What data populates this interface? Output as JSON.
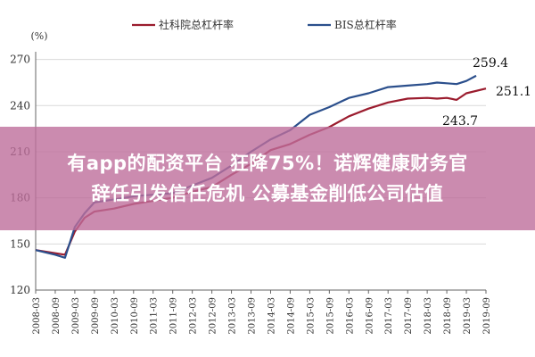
{
  "chart_data": {
    "type": "line",
    "unit_label": "(%)",
    "ylim": [
      120,
      275
    ],
    "yticks": [
      120,
      150,
      180,
      210,
      240,
      270
    ],
    "categories": [
      "2008-03",
      "2008-09",
      "2009-03",
      "2009-09",
      "2010-03",
      "2010-09",
      "2011-03",
      "2011-09",
      "2012-03",
      "2012-09",
      "2013-03",
      "2013-09",
      "2014-03",
      "2014-09",
      "2015-03",
      "2015-09",
      "2016-03",
      "2016-09",
      "2017-03",
      "2017-09",
      "2018-03",
      "2018-09",
      "2019-03",
      "2019-09"
    ],
    "legend_position": "top",
    "series": [
      {
        "name": "杠杆率",
        "label": "社科院总杠杆率",
        "color": "#9b1c2e",
        "points": [
          {
            "x": "2008-03",
            "y": 146
          },
          {
            "x": "2008-09",
            "y": 144
          },
          {
            "x": "2008-12",
            "y": 143
          },
          {
            "x": "2009-03",
            "y": 158
          },
          {
            "x": "2009-06",
            "y": 167
          },
          {
            "x": "2009-09",
            "y": 171
          },
          {
            "x": "2010-03",
            "y": 173
          },
          {
            "x": "2010-09",
            "y": 176
          },
          {
            "x": "2011-03",
            "y": 178
          },
          {
            "x": "2011-09",
            "y": 180
          },
          {
            "x": "2012-03",
            "y": 184
          },
          {
            "x": "2012-09",
            "y": 187
          },
          {
            "x": "2013-03",
            "y": 195
          },
          {
            "x": "2013-09",
            "y": 202
          },
          {
            "x": "2014-03",
            "y": 211
          },
          {
            "x": "2014-09",
            "y": 215
          },
          {
            "x": "2015-03",
            "y": 221
          },
          {
            "x": "2015-09",
            "y": 226
          },
          {
            "x": "2016-03",
            "y": 233
          },
          {
            "x": "2016-09",
            "y": 238
          },
          {
            "x": "2017-03",
            "y": 242
          },
          {
            "x": "2017-09",
            "y": 244.5
          },
          {
            "x": "2018-03",
            "y": 245
          },
          {
            "x": "2018-06",
            "y": 244.5
          },
          {
            "x": "2018-09",
            "y": 245
          },
          {
            "x": "2018-12",
            "y": 243.7
          },
          {
            "x": "2019-03",
            "y": 248
          },
          {
            "x": "2019-09",
            "y": 251.1
          }
        ]
      },
      {
        "name": "BIS总杠杆率",
        "label": "BIS总杠杆率",
        "color": "#2b4f8c",
        "points": [
          {
            "x": "2008-03",
            "y": 146
          },
          {
            "x": "2008-09",
            "y": 143
          },
          {
            "x": "2008-12",
            "y": 141
          },
          {
            "x": "2009-03",
            "y": 161
          },
          {
            "x": "2009-06",
            "y": 170
          },
          {
            "x": "2009-09",
            "y": 177
          },
          {
            "x": "2010-03",
            "y": 179
          },
          {
            "x": "2010-09",
            "y": 181
          },
          {
            "x": "2011-03",
            "y": 182
          },
          {
            "x": "2011-09",
            "y": 183
          },
          {
            "x": "2012-03",
            "y": 188
          },
          {
            "x": "2012-09",
            "y": 193
          },
          {
            "x": "2013-03",
            "y": 201
          },
          {
            "x": "2013-09",
            "y": 210
          },
          {
            "x": "2014-03",
            "y": 218
          },
          {
            "x": "2014-09",
            "y": 224
          },
          {
            "x": "2015-03",
            "y": 234
          },
          {
            "x": "2015-09",
            "y": 239
          },
          {
            "x": "2016-03",
            "y": 245
          },
          {
            "x": "2016-09",
            "y": 248
          },
          {
            "x": "2017-03",
            "y": 252
          },
          {
            "x": "2017-09",
            "y": 253
          },
          {
            "x": "2018-03",
            "y": 254
          },
          {
            "x": "2018-06",
            "y": 255
          },
          {
            "x": "2018-09",
            "y": 254.5
          },
          {
            "x": "2018-12",
            "y": 254
          },
          {
            "x": "2019-03",
            "y": 256
          },
          {
            "x": "2019-06",
            "y": 259.4
          }
        ]
      }
    ],
    "annotations": [
      "259.4",
      "251.1",
      "243.7"
    ]
  },
  "overlay": {
    "line1": "有app的配资平台 狂降75%！诺辉健康财务官",
    "line2": "辞任引发信任危机 公募基金削低公司估值"
  }
}
